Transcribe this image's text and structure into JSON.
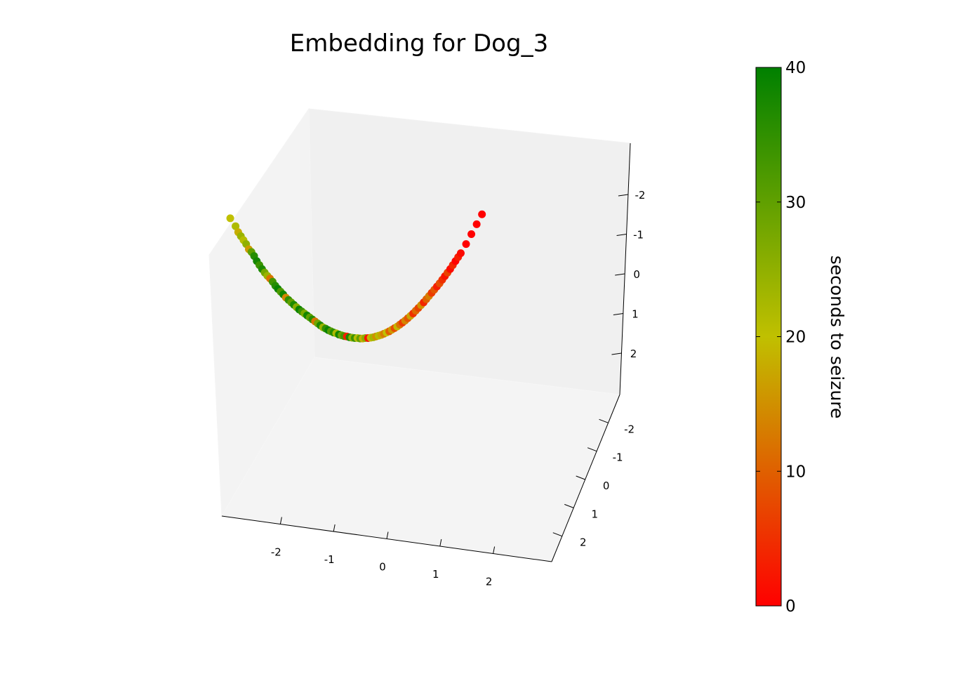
{
  "chart_data": {
    "type": "scatter",
    "projection": "3d",
    "title": "Embedding for Dog_3",
    "xlabel": "",
    "ylabel": "",
    "zlabel": "",
    "x_ticks": [
      "-2",
      "-1",
      "0",
      "1",
      "2"
    ],
    "y_ticks": [
      "-2",
      "-1",
      "0",
      "1",
      "2"
    ],
    "z_ticks": [
      "-2",
      "-1",
      "0",
      "1",
      "2"
    ],
    "grid": false,
    "colorbar": {
      "label": "seconds to seizure",
      "min": 0,
      "max": 40,
      "ticks": [
        "0",
        "10",
        "20",
        "30",
        "40"
      ],
      "colors": {
        "low": "#ff0000",
        "mid": "#c0c000",
        "high": "#008000"
      }
    },
    "shape": "u-shaped curve; left arm mostly green/olive, right arm mostly orange/red",
    "series": [
      {
        "name": "",
        "color_by": "seconds to seizure",
        "points": [
          {
            "x": -2.9,
            "y": 0.0,
            "z": -1.4,
            "c": 20
          },
          {
            "x": -2.8,
            "y": 0.0,
            "z": -1.2,
            "c": 22
          },
          {
            "x": -2.75,
            "y": 0.0,
            "z": -1.05,
            "c": 18
          },
          {
            "x": -2.7,
            "y": 0.0,
            "z": -0.95,
            "c": 24
          },
          {
            "x": -2.65,
            "y": 0.0,
            "z": -0.85,
            "c": 21
          },
          {
            "x": -2.6,
            "y": 0.0,
            "z": -0.75,
            "c": 25
          },
          {
            "x": -2.55,
            "y": 0.0,
            "z": -0.62,
            "c": 16
          },
          {
            "x": -2.5,
            "y": 0.0,
            "z": -0.55,
            "c": 30
          },
          {
            "x": -2.45,
            "y": 0.0,
            "z": -0.45,
            "c": 36
          },
          {
            "x": -2.4,
            "y": 0.0,
            "z": -0.32,
            "c": 38
          },
          {
            "x": -2.35,
            "y": 0.0,
            "z": -0.22,
            "c": 34
          },
          {
            "x": -2.3,
            "y": 0.0,
            "z": -0.12,
            "c": 37
          },
          {
            "x": -2.25,
            "y": 0.0,
            "z": -0.03,
            "c": 28
          },
          {
            "x": -2.2,
            "y": 0.0,
            "z": 0.05,
            "c": 24
          },
          {
            "x": -2.15,
            "y": 0.0,
            "z": 0.12,
            "c": 12
          },
          {
            "x": -2.1,
            "y": 0.0,
            "z": 0.2,
            "c": 33
          },
          {
            "x": -2.05,
            "y": 0.0,
            "z": 0.3,
            "c": 36
          },
          {
            "x": -2.0,
            "y": 0.0,
            "z": 0.38,
            "c": 39
          },
          {
            "x": -1.95,
            "y": 0.0,
            "z": 0.45,
            "c": 32
          },
          {
            "x": -1.9,
            "y": 0.0,
            "z": 0.52,
            "c": 38
          },
          {
            "x": -1.85,
            "y": 0.0,
            "z": 0.6,
            "c": 14
          },
          {
            "x": -1.8,
            "y": 0.0,
            "z": 0.66,
            "c": 35
          },
          {
            "x": -1.75,
            "y": 0.0,
            "z": 0.72,
            "c": 30
          },
          {
            "x": -1.7,
            "y": 0.0,
            "z": 0.78,
            "c": 37
          },
          {
            "x": -1.65,
            "y": 0.0,
            "z": 0.84,
            "c": 26
          },
          {
            "x": -1.6,
            "y": 0.0,
            "z": 0.9,
            "c": 39
          },
          {
            "x": -1.55,
            "y": 0.0,
            "z": 0.95,
            "c": 34
          },
          {
            "x": -1.5,
            "y": 0.0,
            "z": 1.0,
            "c": 27
          },
          {
            "x": -1.45,
            "y": 0.0,
            "z": 1.05,
            "c": 38
          },
          {
            "x": -1.4,
            "y": 0.0,
            "z": 1.1,
            "c": 30
          },
          {
            "x": -1.35,
            "y": 0.0,
            "z": 1.15,
            "c": 36
          },
          {
            "x": -1.3,
            "y": 0.0,
            "z": 1.2,
            "c": 12
          },
          {
            "x": -1.25,
            "y": 0.0,
            "z": 1.25,
            "c": 28
          },
          {
            "x": -1.2,
            "y": 0.0,
            "z": 1.3,
            "c": 37
          },
          {
            "x": -1.15,
            "y": 0.0,
            "z": 1.35,
            "c": 24
          },
          {
            "x": -1.1,
            "y": 0.0,
            "z": 1.38,
            "c": 35
          },
          {
            "x": -1.05,
            "y": 0.0,
            "z": 1.42,
            "c": 39
          },
          {
            "x": -1.0,
            "y": 0.0,
            "z": 1.45,
            "c": 31
          },
          {
            "x": -0.95,
            "y": 0.0,
            "z": 1.48,
            "c": 36
          },
          {
            "x": -0.9,
            "y": 0.0,
            "z": 1.5,
            "c": 22
          },
          {
            "x": -0.85,
            "y": 0.0,
            "z": 1.53,
            "c": 38
          },
          {
            "x": -0.8,
            "y": 0.0,
            "z": 1.55,
            "c": 29
          },
          {
            "x": -0.75,
            "y": 0.0,
            "z": 1.57,
            "c": 33
          },
          {
            "x": -0.7,
            "y": 0.0,
            "z": 1.58,
            "c": 3
          },
          {
            "x": -0.65,
            "y": 0.0,
            "z": 1.6,
            "c": 37
          },
          {
            "x": -0.6,
            "y": 0.0,
            "z": 1.61,
            "c": 25
          },
          {
            "x": -0.55,
            "y": 0.0,
            "z": 1.62,
            "c": 34
          },
          {
            "x": -0.5,
            "y": 0.0,
            "z": 1.62,
            "c": 21
          },
          {
            "x": -0.45,
            "y": 0.0,
            "z": 1.63,
            "c": 30
          },
          {
            "x": -0.4,
            "y": 0.0,
            "z": 1.63,
            "c": 18
          },
          {
            "x": -0.35,
            "y": 0.0,
            "z": 1.62,
            "c": 26
          },
          {
            "x": -0.3,
            "y": 0.0,
            "z": 1.62,
            "c": 2
          },
          {
            "x": -0.25,
            "y": 0.0,
            "z": 1.61,
            "c": 19
          },
          {
            "x": -0.2,
            "y": 0.0,
            "z": 1.6,
            "c": 23
          },
          {
            "x": -0.15,
            "y": 0.0,
            "z": 1.58,
            "c": 15
          },
          {
            "x": -0.1,
            "y": 0.0,
            "z": 1.56,
            "c": 21
          },
          {
            "x": -0.05,
            "y": 0.0,
            "z": 1.54,
            "c": 17
          },
          {
            "x": 0.0,
            "y": 0.0,
            "z": 1.51,
            "c": 13
          },
          {
            "x": 0.05,
            "y": 0.0,
            "z": 1.48,
            "c": 20
          },
          {
            "x": 0.1,
            "y": 0.0,
            "z": 1.45,
            "c": 10
          },
          {
            "x": 0.15,
            "y": 0.0,
            "z": 1.41,
            "c": 16
          },
          {
            "x": 0.2,
            "y": 0.0,
            "z": 1.37,
            "c": 8
          },
          {
            "x": 0.25,
            "y": 0.0,
            "z": 1.33,
            "c": 19
          },
          {
            "x": 0.3,
            "y": 0.0,
            "z": 1.28,
            "c": 12
          },
          {
            "x": 0.35,
            "y": 0.0,
            "z": 1.23,
            "c": 6
          },
          {
            "x": 0.4,
            "y": 0.0,
            "z": 1.18,
            "c": 14
          },
          {
            "x": 0.45,
            "y": 0.0,
            "z": 1.12,
            "c": 9
          },
          {
            "x": 0.5,
            "y": 0.0,
            "z": 1.06,
            "c": 17
          },
          {
            "x": 0.55,
            "y": 0.0,
            "z": 1.0,
            "c": 5
          },
          {
            "x": 0.6,
            "y": 0.0,
            "z": 0.93,
            "c": 11
          },
          {
            "x": 0.65,
            "y": 0.0,
            "z": 0.86,
            "c": 7
          },
          {
            "x": 0.7,
            "y": 0.0,
            "z": 0.79,
            "c": 15
          },
          {
            "x": 0.75,
            "y": 0.0,
            "z": 0.72,
            "c": 4
          },
          {
            "x": 0.8,
            "y": 0.0,
            "z": 0.64,
            "c": 10
          },
          {
            "x": 0.85,
            "y": 0.0,
            "z": 0.56,
            "c": 13
          },
          {
            "x": 0.9,
            "y": 0.0,
            "z": 0.48,
            "c": 6
          },
          {
            "x": 0.95,
            "y": 0.0,
            "z": 0.4,
            "c": 9
          },
          {
            "x": 1.0,
            "y": 0.0,
            "z": 0.32,
            "c": 3
          },
          {
            "x": 1.05,
            "y": 0.0,
            "z": 0.24,
            "c": 8
          },
          {
            "x": 1.1,
            "y": 0.0,
            "z": 0.15,
            "c": 5
          },
          {
            "x": 1.15,
            "y": 0.0,
            "z": 0.06,
            "c": 2
          },
          {
            "x": 1.2,
            "y": 0.0,
            "z": -0.03,
            "c": 7
          },
          {
            "x": 1.25,
            "y": 0.0,
            "z": -0.12,
            "c": 1
          },
          {
            "x": 1.3,
            "y": 0.0,
            "z": -0.22,
            "c": 4
          },
          {
            "x": 1.35,
            "y": 0.0,
            "z": -0.32,
            "c": 0
          },
          {
            "x": 1.4,
            "y": 0.0,
            "z": -0.42,
            "c": 3
          },
          {
            "x": 1.45,
            "y": 0.0,
            "z": -0.52,
            "c": 1
          },
          {
            "x": 1.55,
            "y": 0.0,
            "z": -0.75,
            "c": 0
          },
          {
            "x": 1.65,
            "y": 0.0,
            "z": -1.0,
            "c": 0
          },
          {
            "x": 1.75,
            "y": 0.0,
            "z": -1.25,
            "c": 0
          },
          {
            "x": 1.85,
            "y": 0.0,
            "z": -1.5,
            "c": 0
          }
        ]
      }
    ]
  }
}
